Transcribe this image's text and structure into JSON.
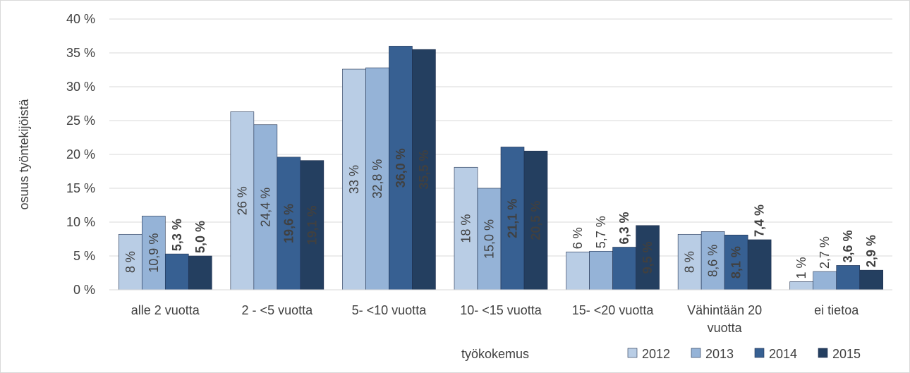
{
  "chart_data": {
    "type": "bar",
    "y_label": "osuus työntekijöistä",
    "x_label": "työkokemus",
    "categories": [
      "alle 2 vuotta",
      "2 - <5 vuotta",
      "5- <10 vuotta",
      "10- <15 vuotta",
      "15- <20 vuotta",
      "Vähintään 20 vuotta",
      "ei tietoa"
    ],
    "series": [
      {
        "name": "2012",
        "color": "#b9cde5",
        "values": [
          8.2,
          26.3,
          32.6,
          18.1,
          5.6,
          8.2,
          1.2
        ],
        "value_labels": [
          "8 %",
          "26 %",
          "33 %",
          "18 %",
          "6 %",
          "8 %",
          "1 %"
        ]
      },
      {
        "name": "2013",
        "color": "#95b3d7",
        "values": [
          10.9,
          24.4,
          32.8,
          15.0,
          5.7,
          8.6,
          2.7
        ],
        "value_labels": [
          "10,9 %",
          "24,4 %",
          "32,8 %",
          "15,0 %",
          "5,7 %",
          "8,6 %",
          "2,7 %"
        ]
      },
      {
        "name": "2014",
        "color": "#376092",
        "values": [
          5.3,
          19.6,
          36.0,
          21.1,
          6.3,
          8.1,
          3.6
        ],
        "value_labels": [
          "5,3 %",
          "19,6 %",
          "36,0 %",
          "21,1 %",
          "6,3 %",
          "8,1 %",
          "3,6 %"
        ]
      },
      {
        "name": "2015",
        "color": "#243f60",
        "values": [
          5.0,
          19.1,
          35.5,
          20.5,
          9.5,
          7.4,
          2.9
        ],
        "value_labels": [
          "5,0 %",
          "19,1 %",
          "35,5 %",
          "20,5 %",
          "9,5 %",
          "7,4 %",
          "2,9 %"
        ]
      }
    ],
    "ylim": [
      0,
      40
    ],
    "yticks": [
      {
        "value": 0,
        "label": "0 %"
      },
      {
        "value": 5,
        "label": "5 %"
      },
      {
        "value": 10,
        "label": "10 %"
      },
      {
        "value": 15,
        "label": "15 %"
      },
      {
        "value": 20,
        "label": "20 %"
      },
      {
        "value": 25,
        "label": "25 %"
      },
      {
        "value": 30,
        "label": "30 %"
      },
      {
        "value": 35,
        "label": "35 %"
      },
      {
        "value": 40,
        "label": "40 %"
      }
    ],
    "grid": true,
    "legend": "bottom-right"
  }
}
